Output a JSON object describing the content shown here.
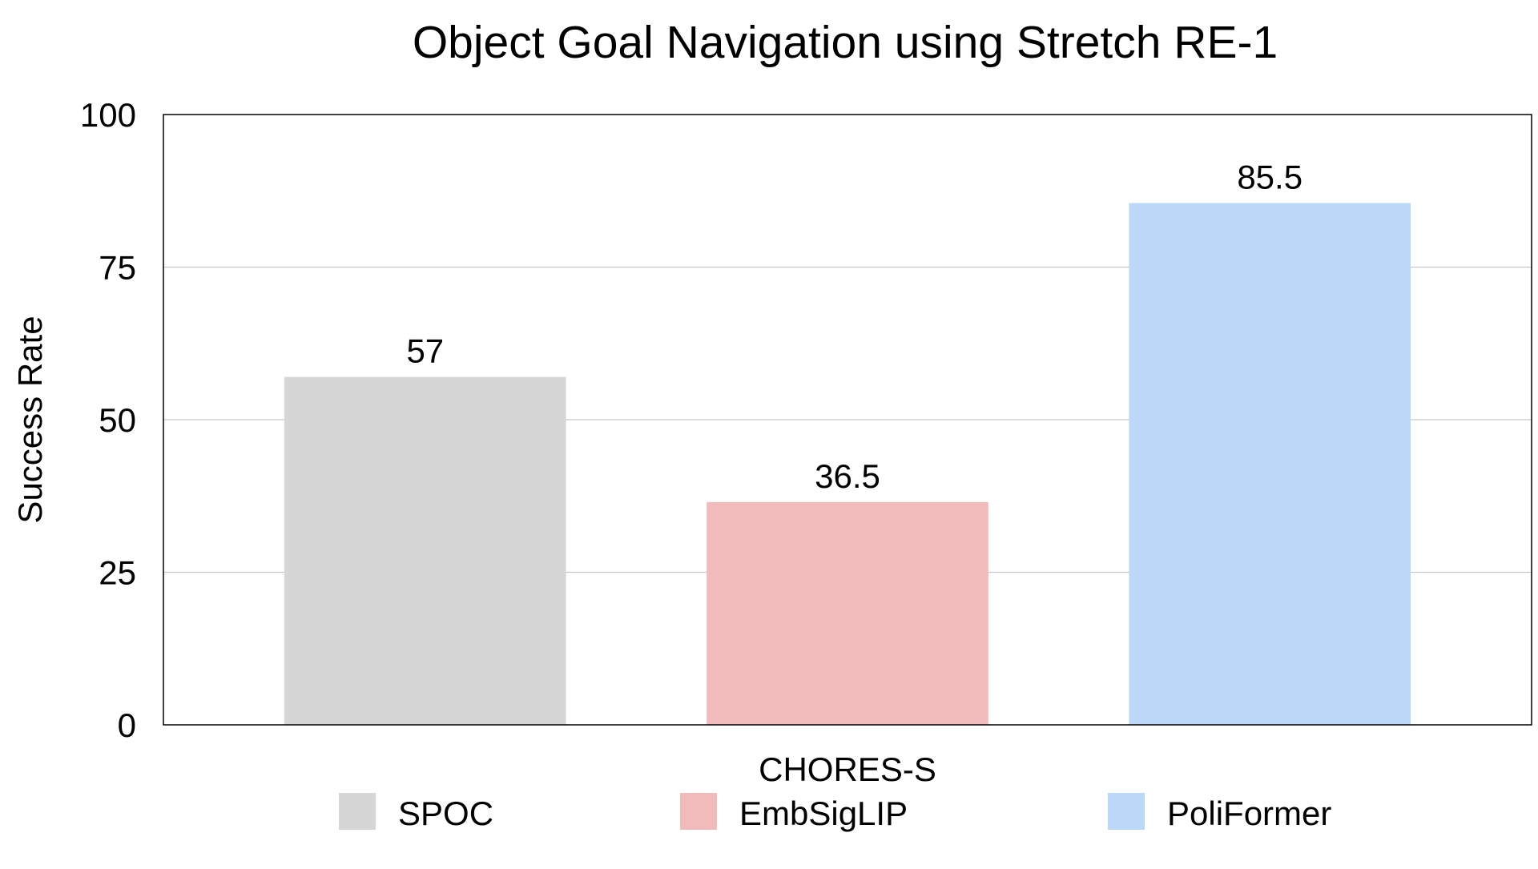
{
  "chart_data": {
    "type": "bar",
    "title": "Object Goal Navigation using Stretch RE-1",
    "xlabel": "",
    "ylabel": "Success Rate",
    "categories": [
      "CHORES-S"
    ],
    "series": [
      {
        "name": "SPOC",
        "values": [
          57
        ],
        "color": "#d6d6d6",
        "label": "57"
      },
      {
        "name": "EmbSigLIP",
        "values": [
          36.5
        ],
        "color": "#f1bbbb",
        "label": "36.5"
      },
      {
        "name": "PoliFormer",
        "values": [
          85.5
        ],
        "color": "#bcd8f8",
        "label": "85.5"
      }
    ],
    "ylim": [
      0,
      100
    ],
    "yticks": [
      0,
      25,
      50,
      75,
      100
    ],
    "ytick_labels": [
      "0",
      "25",
      "50",
      "75",
      "100"
    ],
    "grid": true,
    "legend_position": "bottom"
  }
}
